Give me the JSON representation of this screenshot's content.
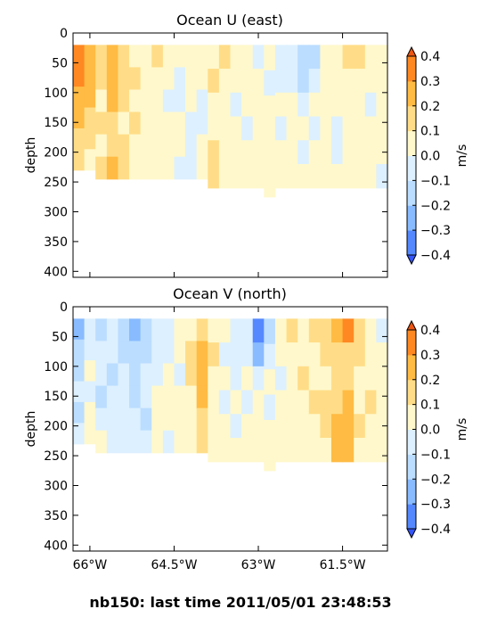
{
  "footer": "nb150: last time 2011/05/01 23:48:53",
  "levels": [
    -0.4,
    -0.3,
    -0.2,
    -0.1,
    0.0,
    0.1,
    0.2,
    0.3,
    0.4
  ],
  "level_colors": [
    "#3355ff",
    "#5588ff",
    "#88bbff",
    "#bbddff",
    "#ddf0ff",
    "#fff8cc",
    "#ffdd88",
    "#ffbb44",
    "#ff8822",
    "#ee5511"
  ],
  "colorbar": {
    "label": "m/s",
    "ticks": [
      "0.4",
      "0.3",
      "0.2",
      "0.1",
      "0.0",
      "−0.1",
      "−0.2",
      "−0.3",
      "−0.4"
    ]
  },
  "chart_data": [
    {
      "type": "heatmap",
      "title": "Ocean U (east)",
      "ylabel": "depth",
      "xlabel": "",
      "xlim": [
        -66.3,
        -60.7
      ],
      "ylim": [
        410,
        0
      ],
      "y_ticks": [
        "0",
        "50",
        "100",
        "150",
        "200",
        "250",
        "300",
        "350",
        "400"
      ],
      "x_ticks": [
        "66°W",
        "64.5°W",
        "63°W",
        "61.5°W"
      ],
      "x_tick_values": [
        -66,
        -64.5,
        -63,
        -61.5
      ],
      "x_tick_labels_shown": false,
      "units": "m/s",
      "columns": [
        {
          "lon": -66.2,
          "bottom": 230,
          "values": [
            0.3,
            0.3,
            0.2,
            0.2,
            0.1,
            0.1
          ]
        },
        {
          "lon": -66.0,
          "bottom": 230,
          "values": [
            0.2,
            0.2,
            0.2,
            0.1,
            0.1,
            0.0
          ]
        },
        {
          "lon": -65.8,
          "bottom": 245,
          "values": [
            0.1,
            0.1,
            0.0,
            0.1,
            0.0,
            0.1
          ]
        },
        {
          "lon": -65.6,
          "bottom": 245,
          "values": [
            0.2,
            0.2,
            0.2,
            0.1,
            0.1,
            0.2
          ]
        },
        {
          "lon": -65.4,
          "bottom": 245,
          "values": [
            0.1,
            0.1,
            0.1,
            0.0,
            0.1,
            0.1
          ]
        },
        {
          "lon": -65.2,
          "bottom": 245,
          "values": [
            0.0,
            0.1,
            0.0,
            0.1,
            0.0,
            0.0
          ]
        },
        {
          "lon": -65.0,
          "bottom": 245,
          "values": [
            0.0,
            0.0,
            0.0,
            0.0,
            0.0,
            0.0
          ]
        },
        {
          "lon": -64.8,
          "bottom": 245,
          "values": [
            0.1,
            0.0,
            0.0,
            0.0,
            0.0,
            0.0
          ]
        },
        {
          "lon": -64.6,
          "bottom": 245,
          "values": [
            0.0,
            0.0,
            -0.1,
            0.0,
            0.0,
            0.0
          ]
        },
        {
          "lon": -64.4,
          "bottom": 245,
          "values": [
            0.0,
            -0.1,
            -0.1,
            0.0,
            0.0,
            -0.1
          ]
        },
        {
          "lon": -64.2,
          "bottom": 245,
          "values": [
            0.0,
            0.0,
            0.0,
            -0.1,
            -0.1,
            -0.1
          ]
        },
        {
          "lon": -64.0,
          "bottom": 245,
          "values": [
            0.0,
            0.0,
            -0.1,
            -0.1,
            0.0,
            0.0
          ]
        },
        {
          "lon": -63.8,
          "bottom": 260,
          "values": [
            0.0,
            0.1,
            0.0,
            0.0,
            0.1,
            0.1
          ]
        },
        {
          "lon": -63.6,
          "bottom": 260,
          "values": [
            0.1,
            0.0,
            0.0,
            0.0,
            0.0,
            0.0
          ]
        },
        {
          "lon": -63.4,
          "bottom": 260,
          "values": [
            0.0,
            0.0,
            -0.1,
            0.0,
            0.0,
            0.0
          ]
        },
        {
          "lon": -63.2,
          "bottom": 260,
          "values": [
            0.0,
            0.0,
            0.0,
            -0.1,
            0.0,
            0.0
          ]
        },
        {
          "lon": -63.0,
          "bottom": 260,
          "values": [
            -0.1,
            0.0,
            0.0,
            0.0,
            0.0,
            0.0
          ]
        },
        {
          "lon": -62.8,
          "bottom": 275,
          "values": [
            0.0,
            -0.1,
            0.0,
            0.0,
            0.0,
            0.0
          ]
        },
        {
          "lon": -62.6,
          "bottom": 260,
          "values": [
            -0.1,
            -0.1,
            0.0,
            -0.1,
            0.0,
            0.0
          ]
        },
        {
          "lon": -62.4,
          "bottom": 260,
          "values": [
            -0.1,
            -0.1,
            0.0,
            0.0,
            0.0,
            0.0
          ]
        },
        {
          "lon": -62.2,
          "bottom": 260,
          "values": [
            -0.2,
            -0.2,
            -0.1,
            0.0,
            -0.1,
            0.0
          ]
        },
        {
          "lon": -62.0,
          "bottom": 260,
          "values": [
            -0.2,
            -0.1,
            0.0,
            -0.1,
            0.0,
            0.0
          ]
        },
        {
          "lon": -61.8,
          "bottom": 260,
          "values": [
            0.0,
            0.0,
            0.0,
            0.0,
            0.0,
            0.0
          ]
        },
        {
          "lon": -61.6,
          "bottom": 260,
          "values": [
            0.0,
            0.0,
            0.0,
            -0.1,
            -0.1,
            0.0
          ]
        },
        {
          "lon": -61.4,
          "bottom": 260,
          "values": [
            0.1,
            0.0,
            0.0,
            0.0,
            0.0,
            0.0
          ]
        },
        {
          "lon": -61.2,
          "bottom": 260,
          "values": [
            0.1,
            0.0,
            0.0,
            0.0,
            0.0,
            0.0
          ]
        },
        {
          "lon": -61.0,
          "bottom": 260,
          "values": [
            0.0,
            0.0,
            -0.1,
            0.0,
            0.0,
            0.0
          ]
        },
        {
          "lon": -60.8,
          "bottom": 260,
          "values": [
            0.0,
            0.0,
            0.0,
            0.0,
            0.0,
            -0.1
          ]
        }
      ]
    },
    {
      "type": "heatmap",
      "title": "Ocean V (north)",
      "ylabel": "depth",
      "xlabel": "",
      "xlim": [
        -66.3,
        -60.7
      ],
      "ylim": [
        410,
        0
      ],
      "y_ticks": [
        "0",
        "50",
        "100",
        "150",
        "200",
        "250",
        "300",
        "350",
        "400"
      ],
      "x_ticks": [
        "66°W",
        "64.5°W",
        "63°W",
        "61.5°W"
      ],
      "x_tick_values": [
        -66,
        -64.5,
        -63,
        -61.5
      ],
      "x_tick_labels_shown": true,
      "units": "m/s",
      "columns": [
        {
          "lon": -66.2,
          "bottom": 230,
          "values": [
            -0.3,
            -0.2,
            -0.2,
            -0.1,
            -0.2,
            -0.1
          ]
        },
        {
          "lon": -66.0,
          "bottom": 230,
          "values": [
            -0.1,
            -0.1,
            0.0,
            -0.1,
            0.0,
            0.0
          ]
        },
        {
          "lon": -65.8,
          "bottom": 245,
          "values": [
            -0.2,
            -0.1,
            -0.1,
            -0.2,
            -0.1,
            0.0
          ]
        },
        {
          "lon": -65.6,
          "bottom": 245,
          "values": [
            -0.1,
            -0.1,
            -0.2,
            -0.1,
            -0.1,
            -0.1
          ]
        },
        {
          "lon": -65.4,
          "bottom": 245,
          "values": [
            -0.2,
            -0.2,
            -0.1,
            -0.1,
            -0.1,
            -0.1
          ]
        },
        {
          "lon": -65.2,
          "bottom": 245,
          "values": [
            -0.3,
            -0.2,
            -0.2,
            -0.2,
            -0.1,
            -0.1
          ]
        },
        {
          "lon": -65.0,
          "bottom": 245,
          "values": [
            -0.2,
            -0.2,
            -0.1,
            -0.1,
            -0.2,
            -0.1
          ]
        },
        {
          "lon": -64.8,
          "bottom": 245,
          "values": [
            -0.1,
            -0.1,
            -0.1,
            0.0,
            0.0,
            0.0
          ]
        },
        {
          "lon": -64.6,
          "bottom": 245,
          "values": [
            -0.1,
            -0.1,
            0.0,
            0.0,
            0.0,
            -0.1
          ]
        },
        {
          "lon": -64.4,
          "bottom": 245,
          "values": [
            0.0,
            0.0,
            -0.1,
            0.0,
            0.0,
            0.0
          ]
        },
        {
          "lon": -64.2,
          "bottom": 245,
          "values": [
            0.0,
            0.1,
            0.1,
            0.0,
            0.0,
            0.0
          ]
        },
        {
          "lon": -64.0,
          "bottom": 245,
          "values": [
            0.1,
            0.2,
            0.2,
            0.2,
            0.1,
            0.1
          ]
        },
        {
          "lon": -63.8,
          "bottom": 260,
          "values": [
            0.0,
            0.1,
            0.0,
            0.0,
            0.0,
            0.0
          ]
        },
        {
          "lon": -63.6,
          "bottom": 260,
          "values": [
            0.0,
            -0.1,
            0.0,
            -0.1,
            0.0,
            0.0
          ]
        },
        {
          "lon": -63.4,
          "bottom": 260,
          "values": [
            -0.1,
            -0.1,
            -0.1,
            0.0,
            -0.1,
            0.0
          ]
        },
        {
          "lon": -63.2,
          "bottom": 260,
          "values": [
            -0.1,
            -0.1,
            0.0,
            -0.1,
            0.0,
            0.0
          ]
        },
        {
          "lon": -63.0,
          "bottom": 260,
          "values": [
            -0.4,
            -0.3,
            -0.1,
            0.0,
            0.0,
            0.0
          ]
        },
        {
          "lon": -62.8,
          "bottom": 275,
          "values": [
            -0.2,
            -0.1,
            0.0,
            -0.1,
            0.0,
            0.0
          ]
        },
        {
          "lon": -62.6,
          "bottom": 260,
          "values": [
            0.0,
            0.0,
            -0.1,
            0.0,
            0.0,
            0.0
          ]
        },
        {
          "lon": -62.4,
          "bottom": 260,
          "values": [
            0.1,
            0.0,
            0.0,
            0.0,
            0.0,
            0.0
          ]
        },
        {
          "lon": -62.2,
          "bottom": 260,
          "values": [
            0.0,
            0.0,
            0.1,
            0.0,
            0.0,
            0.0
          ]
        },
        {
          "lon": -62.0,
          "bottom": 260,
          "values": [
            0.1,
            0.0,
            0.0,
            0.1,
            0.0,
            0.0
          ]
        },
        {
          "lon": -61.8,
          "bottom": 260,
          "values": [
            0.1,
            0.1,
            0.0,
            0.1,
            0.1,
            0.0
          ]
        },
        {
          "lon": -61.6,
          "bottom": 260,
          "values": [
            0.2,
            0.1,
            0.1,
            0.1,
            0.2,
            0.2
          ]
        },
        {
          "lon": -61.4,
          "bottom": 260,
          "values": [
            0.3,
            0.1,
            0.1,
            0.2,
            0.2,
            0.2
          ]
        },
        {
          "lon": -61.2,
          "bottom": 260,
          "values": [
            0.1,
            0.1,
            0.0,
            0.0,
            0.1,
            0.0
          ]
        },
        {
          "lon": -61.0,
          "bottom": 260,
          "values": [
            0.0,
            0.0,
            0.0,
            0.1,
            0.0,
            0.0
          ]
        },
        {
          "lon": -60.8,
          "bottom": 260,
          "values": [
            -0.1,
            0.0,
            0.0,
            0.0,
            0.0,
            0.0
          ]
        }
      ]
    }
  ]
}
